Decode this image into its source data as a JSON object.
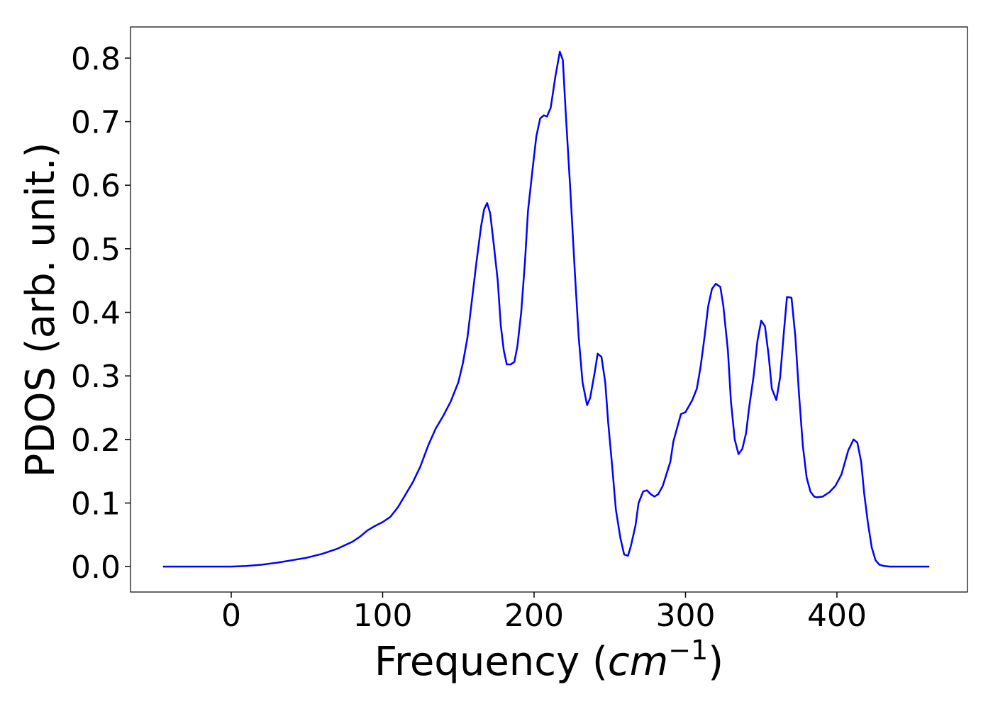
{
  "chart_data": {
    "type": "line",
    "xlabel": [
      "Frequency (",
      "cm",
      "−1",
      ")"
    ],
    "ylabel": "PDOS (arb. unit.)",
    "xlim": [
      -66.5,
      486.2
    ],
    "ylim": [
      -0.04,
      0.849
    ],
    "xticks": [
      0,
      100,
      200,
      300,
      400
    ],
    "yticks": [
      {
        "value": 0,
        "label": "0.0"
      },
      0.1,
      0.2,
      0.3,
      0.4,
      0.5,
      0.6,
      0.7,
      0.8
    ],
    "x": [
      -45,
      0,
      10,
      20,
      30,
      40,
      50,
      60,
      70,
      80,
      85,
      90,
      95,
      100,
      105,
      110,
      115,
      120,
      125,
      130,
      135,
      140,
      145,
      150,
      153,
      156,
      159,
      162,
      165,
      167,
      169,
      171,
      173,
      176,
      178,
      180,
      182,
      184.5,
      187,
      189,
      191.5,
      194,
      196,
      199,
      201.5,
      204,
      206.5,
      208.5,
      211,
      214,
      217,
      219,
      221,
      224,
      227,
      229.5,
      232,
      235,
      237,
      240,
      242,
      244.5,
      247,
      249,
      251.5,
      254,
      257,
      259.5,
      262,
      264,
      267,
      269,
      272,
      274.5,
      277,
      279.5,
      282,
      285,
      290,
      292,
      297,
      300,
      304.5,
      307.5,
      310,
      312.5,
      315,
      317.5,
      320,
      323,
      325,
      328,
      330,
      332.5,
      335,
      337.5,
      340,
      342,
      345,
      347.5,
      350,
      352.5,
      355,
      357,
      360,
      362.5,
      365,
      367,
      370,
      372.5,
      375,
      377.5,
      380,
      382.5,
      385,
      387,
      390.5,
      395,
      399,
      403,
      407.5,
      411,
      413.5,
      416,
      418,
      420.5,
      423,
      425.5,
      428,
      431,
      435,
      461
    ],
    "series": [
      {
        "color": "#0000ff",
        "values": [
          0,
          0,
          0.001,
          0.003,
          0.006,
          0.01,
          0.014,
          0.02,
          0.028,
          0.039,
          0.047,
          0.057,
          0.064,
          0.07,
          0.078,
          0.093,
          0.113,
          0.133,
          0.158,
          0.19,
          0.217,
          0.237,
          0.26,
          0.29,
          0.32,
          0.36,
          0.42,
          0.48,
          0.535,
          0.562,
          0.572,
          0.556,
          0.515,
          0.45,
          0.38,
          0.34,
          0.318,
          0.318,
          0.322,
          0.347,
          0.4,
          0.48,
          0.56,
          0.625,
          0.677,
          0.705,
          0.71,
          0.708,
          0.722,
          0.77,
          0.81,
          0.797,
          0.71,
          0.59,
          0.46,
          0.36,
          0.29,
          0.254,
          0.265,
          0.305,
          0.335,
          0.33,
          0.29,
          0.225,
          0.16,
          0.09,
          0.045,
          0.019,
          0.017,
          0.033,
          0.065,
          0.1,
          0.118,
          0.12,
          0.114,
          0.11,
          0.114,
          0.127,
          0.165,
          0.197,
          0.24,
          0.243,
          0.262,
          0.28,
          0.315,
          0.36,
          0.41,
          0.437,
          0.445,
          0.44,
          0.41,
          0.34,
          0.26,
          0.2,
          0.177,
          0.185,
          0.21,
          0.25,
          0.3,
          0.355,
          0.387,
          0.378,
          0.33,
          0.28,
          0.262,
          0.298,
          0.37,
          0.424,
          0.423,
          0.363,
          0.27,
          0.19,
          0.14,
          0.118,
          0.11,
          0.109,
          0.11,
          0.117,
          0.127,
          0.145,
          0.183,
          0.2,
          0.195,
          0.165,
          0.115,
          0.068,
          0.03,
          0.01,
          0.003,
          0.001,
          0,
          0
        ]
      }
    ]
  }
}
